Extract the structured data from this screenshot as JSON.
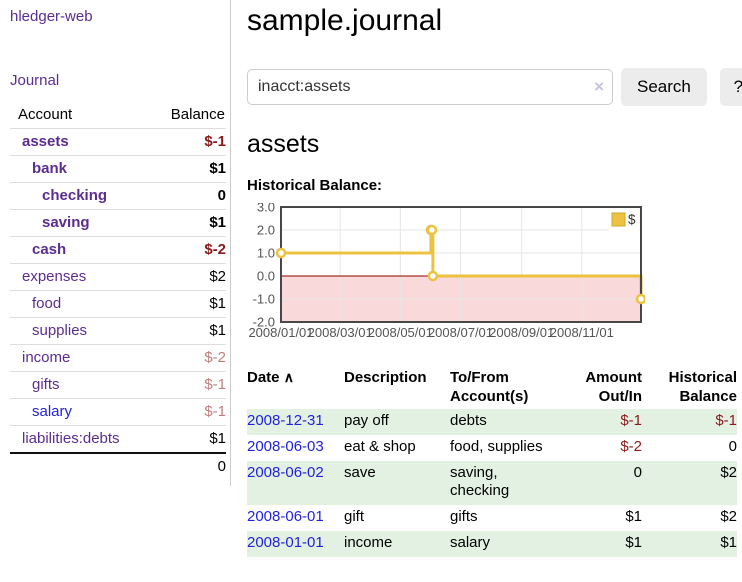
{
  "colors": {
    "link_purple": "#5c2d91",
    "link_blue": "#2222dd",
    "negative_strong": "#8b1a1a",
    "negative_soft": "#c08080",
    "row_stripe_green": "#e3f1e3",
    "button_bg": "#ececec",
    "divider": "#cccccc",
    "chart_series_gold": "#edc240"
  },
  "sidebar": {
    "app_title": "hledger-web",
    "nav_journal": "Journal",
    "accounts_table": {
      "col_account": "Account",
      "col_balance": "Balance",
      "rows": [
        {
          "name": "assets",
          "depth": 1,
          "bold": true,
          "balance": "$-1",
          "balance_style": "strong-negative",
          "link_style": "purple"
        },
        {
          "name": "bank",
          "depth": 2,
          "bold": true,
          "balance": "$1",
          "balance_style": "normal",
          "link_style": "purple"
        },
        {
          "name": "checking",
          "depth": 3,
          "bold": true,
          "balance": "0",
          "balance_style": "normal",
          "link_style": "purple"
        },
        {
          "name": "saving",
          "depth": 3,
          "bold": true,
          "balance": "$1",
          "balance_style": "normal",
          "link_style": "purple"
        },
        {
          "name": "cash",
          "depth": 2,
          "bold": true,
          "balance": "$-2",
          "balance_style": "strong-negative",
          "link_style": "purple"
        },
        {
          "name": "expenses",
          "depth": 1,
          "bold": false,
          "balance": "$2",
          "balance_style": "normal",
          "link_style": "purple"
        },
        {
          "name": "food",
          "depth": 2,
          "bold": false,
          "balance": "$1",
          "balance_style": "normal",
          "link_style": "purple"
        },
        {
          "name": "supplies",
          "depth": 2,
          "bold": false,
          "balance": "$1",
          "balance_style": "normal",
          "link_style": "purple"
        },
        {
          "name": "income",
          "depth": 1,
          "bold": false,
          "balance": "$-2",
          "balance_style": "soft-negative",
          "link_style": "purple"
        },
        {
          "name": "gifts",
          "depth": 2,
          "bold": false,
          "balance": "$-1",
          "balance_style": "soft-negative",
          "link_style": "purple"
        },
        {
          "name": "salary",
          "depth": 2,
          "bold": false,
          "balance": "$-1",
          "balance_style": "soft-negative",
          "link_style": "blue"
        },
        {
          "name": "liabilities:debts",
          "depth": 1,
          "bold": false,
          "balance": "$1",
          "balance_style": "normal",
          "link_style": "purple"
        }
      ],
      "total": "0"
    }
  },
  "header": {
    "title": "sample.journal"
  },
  "search": {
    "query": "inacct:assets",
    "clear_icon": "×",
    "search_label": "Search",
    "help_label": "?"
  },
  "account_page": {
    "heading": "assets",
    "chart_title": "Historical Balance:"
  },
  "chart_data": {
    "type": "line",
    "title": "Historical Balance:",
    "x_range": [
      "2008-01-01",
      "2008-12-31"
    ],
    "ylim": [
      -2,
      3
    ],
    "y_ticks": [
      {
        "label": "3.0",
        "value": 3
      },
      {
        "label": "2.0",
        "value": 2
      },
      {
        "label": "1.0",
        "value": 1
      },
      {
        "label": "0.0",
        "value": 0
      },
      {
        "label": "-1.0",
        "value": -1
      },
      {
        "label": "-2.0",
        "value": -2
      }
    ],
    "x_ticks": [
      {
        "label": "2008/01/01",
        "date": "2008-01-01"
      },
      {
        "label": "2008/03/01",
        "date": "2008-03-01"
      },
      {
        "label": "2008/05/01",
        "date": "2008-05-01"
      },
      {
        "label": "2008/07/01",
        "date": "2008-07-01"
      },
      {
        "label": "2008/09/01",
        "date": "2008-09-01"
      },
      {
        "label": "2008/11/01",
        "date": "2008-11-01"
      }
    ],
    "series": [
      {
        "name": "$",
        "color": "#edc240",
        "marker_fill": "#ffffff",
        "step": true,
        "points": [
          {
            "date": "2008-01-01",
            "value": 1
          },
          {
            "date": "2008-06-01",
            "value": 2
          },
          {
            "date": "2008-06-02",
            "value": 2
          },
          {
            "date": "2008-06-03",
            "value": 0
          },
          {
            "date": "2008-12-31",
            "value": -1
          }
        ]
      }
    ],
    "legend_position": "top-right",
    "legend_label": "$",
    "grid": true,
    "grid_color": "#e6e6e6",
    "border_color": "#474747",
    "zero_line_color": "#8b0000",
    "negative_region_color": "#f9d9d9",
    "tick_label_color": "#545454"
  },
  "register": {
    "sort_icon": "∧",
    "columns": [
      {
        "label": "Date"
      },
      {
        "label": "Description"
      },
      {
        "label": "To/From Account(s)"
      },
      {
        "label": "Amount Out/In"
      },
      {
        "label": "Historical Balance"
      }
    ],
    "rows": [
      {
        "date": "2008-12-31",
        "description": "pay off",
        "accounts": "debts",
        "amount": "$-1",
        "amount_negative": true,
        "balance": "$-1",
        "balance_negative": true
      },
      {
        "date": "2008-06-03",
        "description": "eat & shop",
        "accounts": "food, supplies",
        "amount": "$-2",
        "amount_negative": true,
        "balance": "0",
        "balance_negative": false
      },
      {
        "date": "2008-06-02",
        "description": "save",
        "accounts": "saving, checking",
        "amount": "0",
        "amount_negative": false,
        "balance": "$2",
        "balance_negative": false
      },
      {
        "date": "2008-06-01",
        "description": "gift",
        "accounts": "gifts",
        "amount": "$1",
        "amount_negative": false,
        "balance": "$2",
        "balance_negative": false
      },
      {
        "date": "2008-01-01",
        "description": "income",
        "accounts": "salary",
        "amount": "$1",
        "amount_negative": false,
        "balance": "$1",
        "balance_negative": false
      }
    ]
  }
}
